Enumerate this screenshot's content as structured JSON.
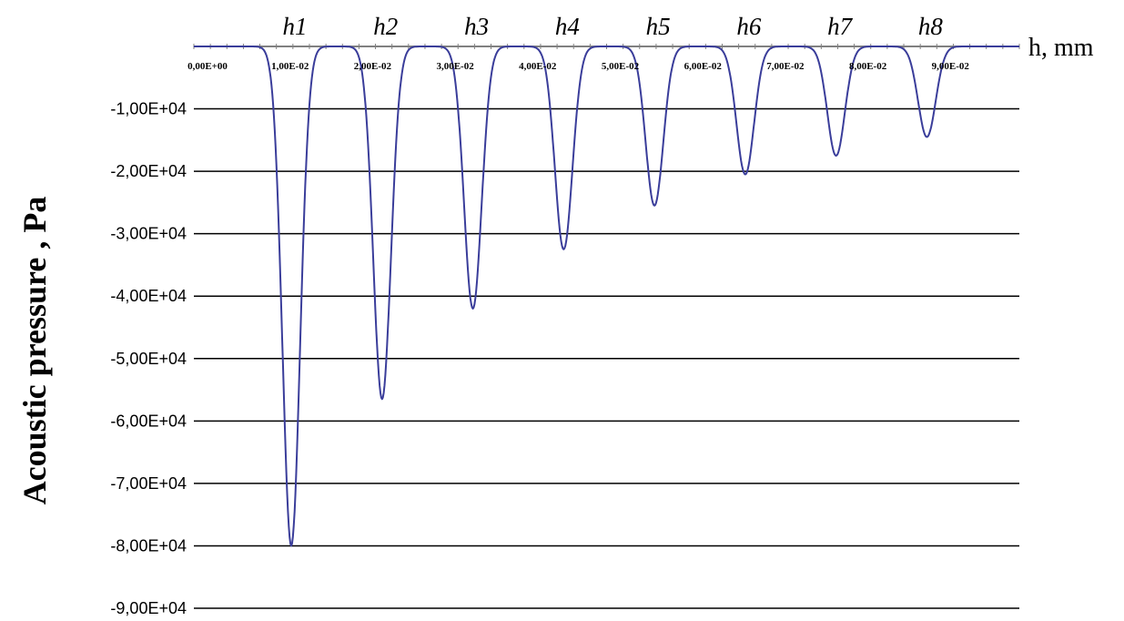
{
  "chart_data": {
    "type": "line",
    "title": "",
    "xlabel": "h, mm",
    "ylabel": "Acoustic pressure , Pa",
    "xlim": [
      0,
      0.1
    ],
    "ylim": [
      -90000,
      0
    ],
    "grid": true,
    "x_tick_values": [
      0,
      0.01,
      0.02,
      0.03,
      0.04,
      0.05,
      0.06,
      0.07,
      0.08,
      0.09
    ],
    "x_tick_labels": [
      "0,00E+00",
      "1,00E-02",
      "2,00E-02",
      "3,00E-02",
      "4,00E-02",
      "5,00E-02",
      "6,00E-02",
      "7,00E-02",
      "8,00E-02",
      "9,00E-02"
    ],
    "y_tick_values": [
      -10000,
      -20000,
      -30000,
      -40000,
      -50000,
      -60000,
      -70000,
      -80000,
      -90000
    ],
    "y_tick_labels": [
      "-1,00E+04",
      "-2,00E+04",
      "-3,00E+04",
      "-4,00E+04",
      "-5,00E+04",
      "-6,00E+04",
      "-7,00E+04",
      "-8,00E+04",
      "-9,00E+04"
    ],
    "line_color": "#3a3d9a",
    "peak_labels": [
      "h1",
      "h2",
      "h3",
      "h4",
      "h5",
      "h6",
      "h7",
      "h8"
    ],
    "peaks": [
      {
        "label": "h1",
        "x": 0.0118,
        "y": -80000
      },
      {
        "label": "h2",
        "x": 0.0228,
        "y": -56500
      },
      {
        "label": "h3",
        "x": 0.0338,
        "y": -42000
      },
      {
        "label": "h4",
        "x": 0.0448,
        "y": -32500
      },
      {
        "label": "h5",
        "x": 0.0558,
        "y": -25500
      },
      {
        "label": "h6",
        "x": 0.0668,
        "y": -20500
      },
      {
        "label": "h7",
        "x": 0.0778,
        "y": -17500
      },
      {
        "label": "h8",
        "x": 0.0888,
        "y": -14500
      }
    ]
  }
}
